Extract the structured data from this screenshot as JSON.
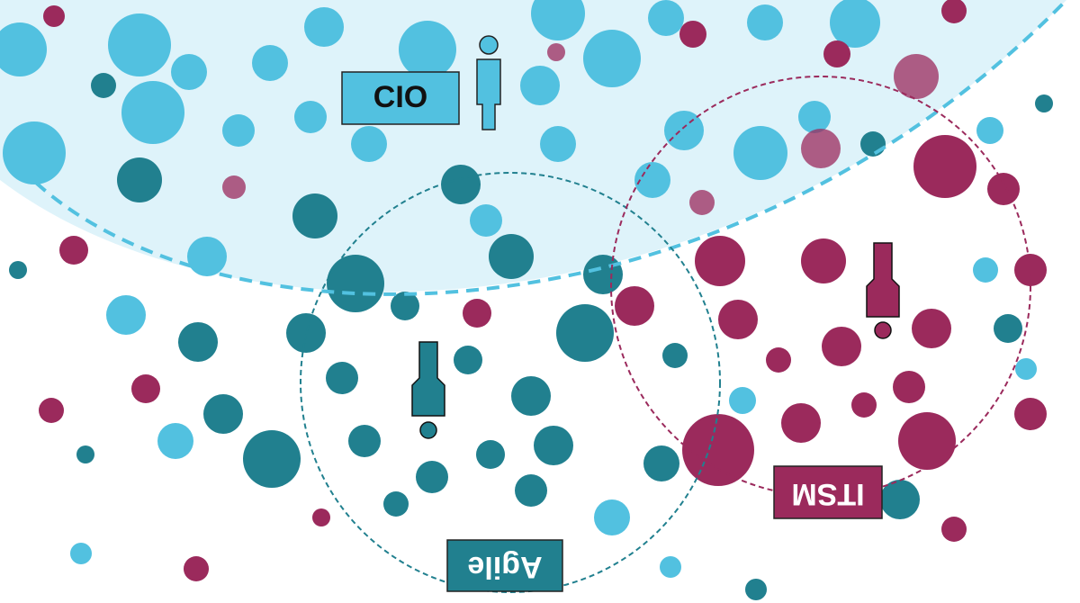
{
  "labels": {
    "cio": "CIO",
    "agile": "Agile",
    "itsm": "ITSM"
  }
}
